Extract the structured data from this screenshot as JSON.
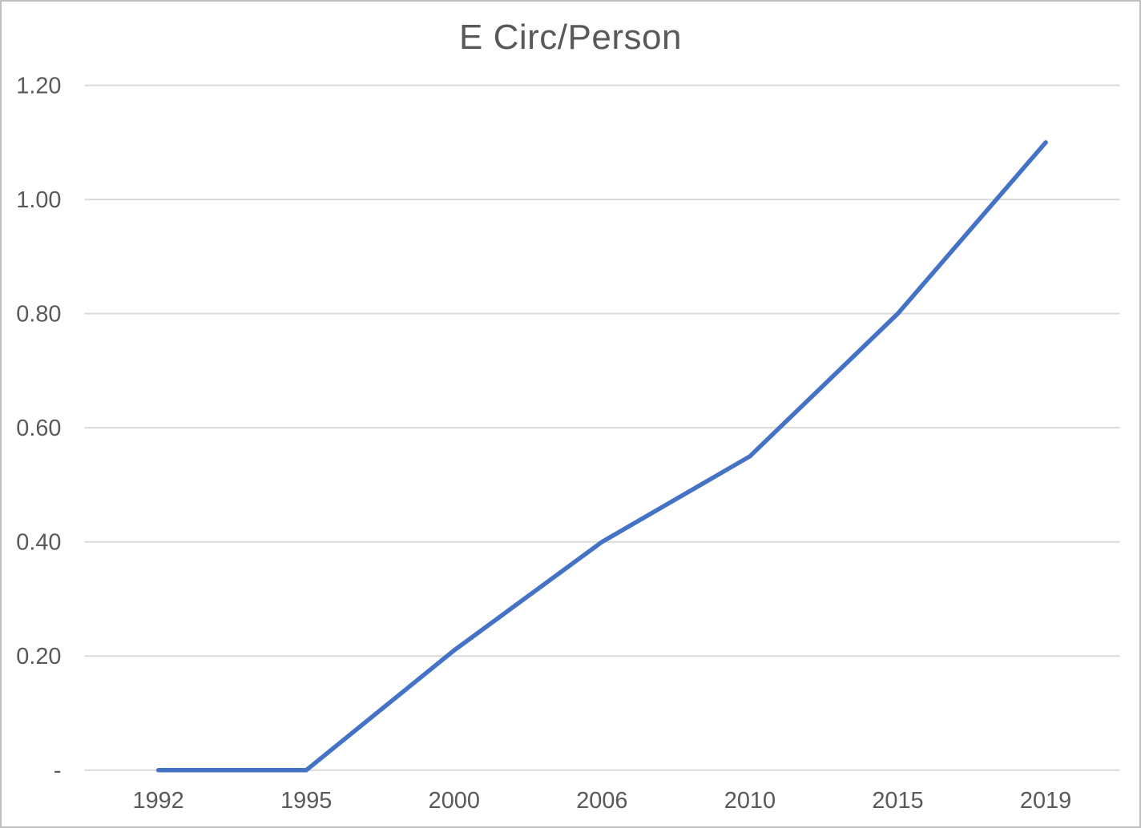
{
  "chart_data": {
    "type": "line",
    "title": "E Circ/Person",
    "xlabel": "",
    "ylabel": "",
    "categories": [
      "1992",
      "1995",
      "2000",
      "2006",
      "2010",
      "2015",
      "2019"
    ],
    "series": [
      {
        "name": "E Circ/Person",
        "values": [
          0,
          0,
          0.21,
          0.4,
          0.55,
          0.8,
          1.1
        ]
      }
    ],
    "ylim": [
      0,
      1.2
    ],
    "y_ticks": [
      {
        "value": 1.2,
        "label": "1.20"
      },
      {
        "value": 1.0,
        "label": "1.00"
      },
      {
        "value": 0.8,
        "label": "0.80"
      },
      {
        "value": 0.6,
        "label": "0.60"
      },
      {
        "value": 0.4,
        "label": "0.40"
      },
      {
        "value": 0.2,
        "label": "0.20"
      },
      {
        "value": 0.0,
        "label": "-"
      }
    ],
    "grid": true,
    "legend": false,
    "colors": {
      "line": "#4472C4",
      "gridline": "#D9D9D9",
      "text": "#595959",
      "border": "#BFBFBF",
      "background": "#FFFFFF"
    }
  }
}
